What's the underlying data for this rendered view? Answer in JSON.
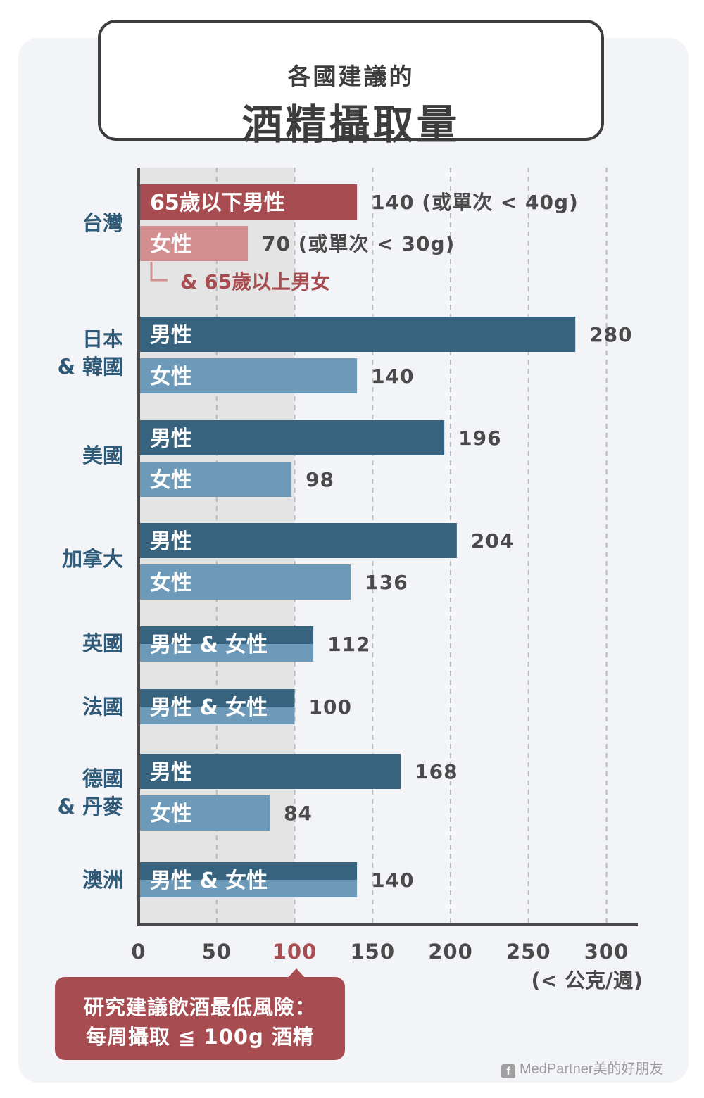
{
  "title": {
    "line1": "各國建議的",
    "line2": "酒精攝取量"
  },
  "colors": {
    "taiwan_male": "#a74c50",
    "taiwan_female": "#d38e8f",
    "male": "#37637f",
    "female": "#6d9ab8",
    "axis": "#4a4a4a",
    "label_text": "#2f5a78",
    "value_text": "#4a4a4a",
    "highlight_tick": "#a74c50",
    "low_risk_band": "#e4e4e4",
    "grid": "#b8b8b8"
  },
  "chart_data": {
    "type": "bar",
    "orientation": "horizontal",
    "xlim": [
      0,
      300
    ],
    "xticks": [
      0,
      50,
      100,
      150,
      200,
      250,
      300
    ],
    "highlight_tick": 100,
    "unit_label": "(< 公克/週)",
    "grid": true,
    "shaded_band": [
      0,
      100
    ],
    "groups": [
      {
        "country": "台灣",
        "bars": [
          {
            "label": "65歲以下男性",
            "value": 140,
            "value_text": "140 (或單次 < 40g)",
            "style": "taiwan_male"
          },
          {
            "label": "女性",
            "value": 70,
            "value_text": "70 (或單次 < 30g)",
            "style": "taiwan_female"
          }
        ],
        "note": "& 65歲以上男女"
      },
      {
        "country": "日本\n& 韓國",
        "bars": [
          {
            "label": "男性",
            "value": 280,
            "value_text": "280",
            "style": "male"
          },
          {
            "label": "女性",
            "value": 140,
            "value_text": "140",
            "style": "female"
          }
        ]
      },
      {
        "country": "美國",
        "bars": [
          {
            "label": "男性",
            "value": 196,
            "value_text": "196",
            "style": "male"
          },
          {
            "label": "女性",
            "value": 98,
            "value_text": "98",
            "style": "female"
          }
        ]
      },
      {
        "country": "加拿大",
        "bars": [
          {
            "label": "男性",
            "value": 204,
            "value_text": "204",
            "style": "male"
          },
          {
            "label": "女性",
            "value": 136,
            "value_text": "136",
            "style": "female"
          }
        ]
      },
      {
        "country": "英國",
        "bars": [
          {
            "label": "男性 & 女性",
            "value": 112,
            "value_text": "112",
            "style": "combined"
          }
        ]
      },
      {
        "country": "法國",
        "bars": [
          {
            "label": "男性 & 女性",
            "value": 100,
            "value_text": "100",
            "style": "combined"
          }
        ]
      },
      {
        "country": "德國\n& 丹麥",
        "bars": [
          {
            "label": "男性",
            "value": 168,
            "value_text": "168",
            "style": "male"
          },
          {
            "label": "女性",
            "value": 84,
            "value_text": "84",
            "style": "female"
          }
        ]
      },
      {
        "country": "澳洲",
        "bars": [
          {
            "label": "男性 & 女性",
            "value": 140,
            "value_text": "140",
            "style": "combined"
          }
        ]
      }
    ]
  },
  "callout": {
    "line1": "研究建議飲酒最低風險：",
    "line2": "每周攝取 ≦ 100g 酒精"
  },
  "credit": {
    "icon": "facebook-icon",
    "text": "MedPartner美的好朋友"
  }
}
